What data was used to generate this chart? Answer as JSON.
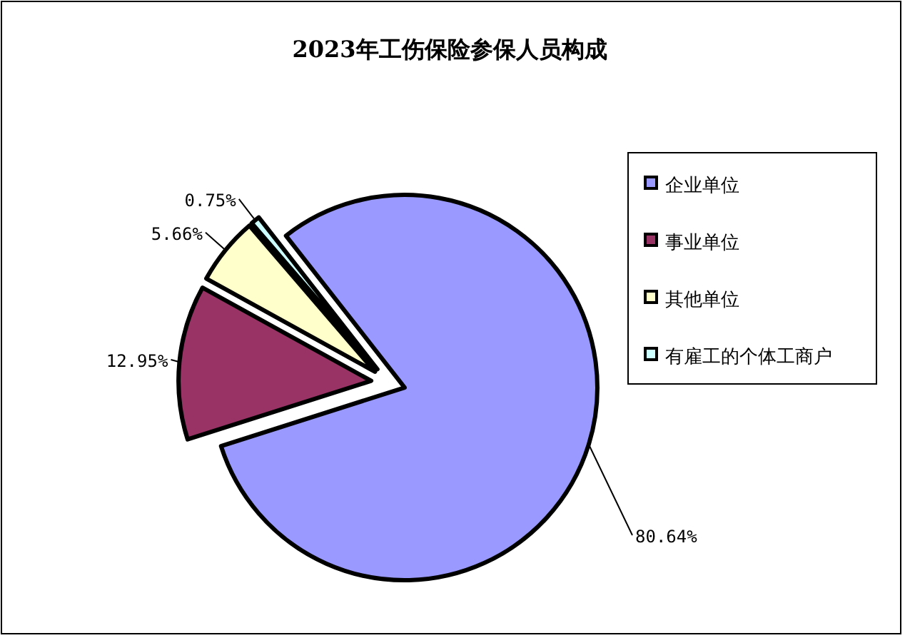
{
  "chart_data": {
    "type": "pie",
    "title": "2023年工伤保险参保人员构成",
    "categories": [
      "企业单位",
      "事业单位",
      "其他单位",
      "有雇工的个体工商户"
    ],
    "values": [
      80.64,
      12.95,
      5.66,
      0.75
    ],
    "colors": [
      "#9999ff",
      "#993366",
      "#ffffcc",
      "#ccffff"
    ],
    "value_labels": [
      "80.64%",
      "12.95%",
      "5.66%",
      "0.75%"
    ],
    "legend": "right"
  }
}
